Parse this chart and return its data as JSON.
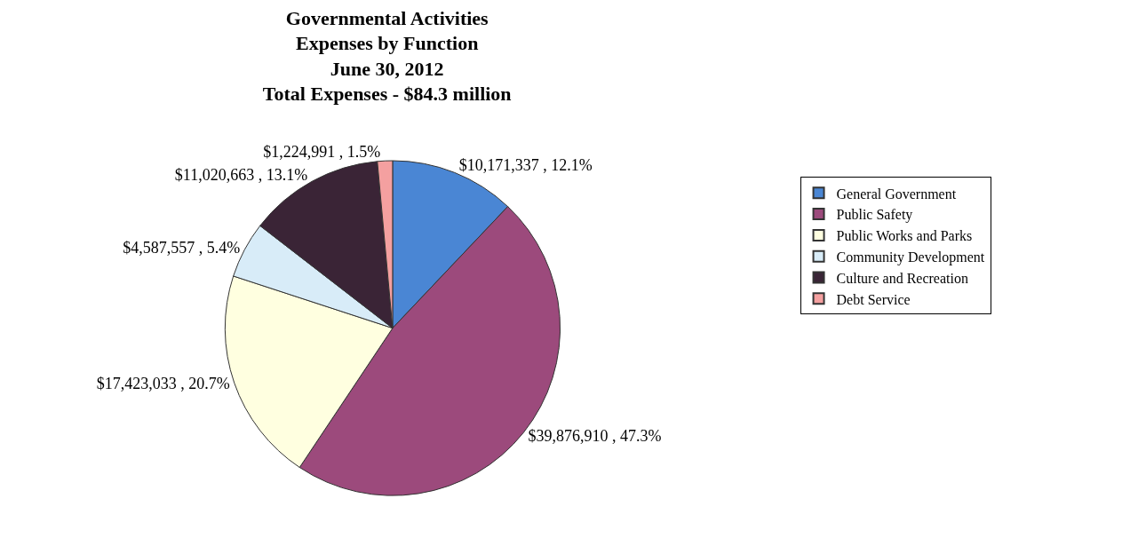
{
  "chart_data": {
    "type": "pie",
    "title": "Governmental Activities\nExpenses by Function\nJune 30, 2012\nTotal Expenses - $84.3 million",
    "categories": [
      "General Government",
      "Public Safety",
      "Public Works and Parks",
      "Community Development",
      "Culture and Recreation",
      "Debt Service"
    ],
    "values": [
      10171337,
      39876910,
      17423033,
      4587557,
      11020663,
      1224991
    ],
    "value_labels": [
      "$10,171,337 , 12.1%",
      "$39,876,910 , 47.3%",
      "$17,423,033 , 20.7%",
      "$4,587,557 , 5.4%",
      "$11,020,663 , 13.1%",
      "$1,224,991 , 1.5%"
    ],
    "colors": [
      "#4a86d4",
      "#9c4a7c",
      "#ffffe0",
      "#d8ecf8",
      "#3a2436",
      "#f4a0a0"
    ],
    "legend": "right"
  }
}
